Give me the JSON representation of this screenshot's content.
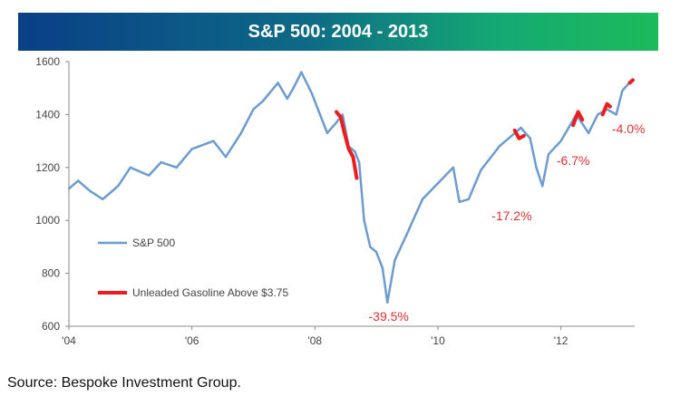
{
  "header": {
    "title": "S&P 500: 2004 - 2013"
  },
  "source": "Source:  Bespoke Investment Group.",
  "colors": {
    "sp500": "#6b9bd1",
    "gasoline": "#ee1c1c",
    "annotation": "#e03030"
  },
  "chart_data": {
    "type": "line",
    "title": "S&P 500: 2004 - 2013",
    "xlabel": "",
    "ylabel": "",
    "xlim": [
      2004.0,
      2013.2
    ],
    "ylim": [
      600,
      1600
    ],
    "grid": false,
    "legend_position": "left",
    "y_ticks": [
      "600",
      "800",
      "1000",
      "1200",
      "1400",
      "1600"
    ],
    "x_ticks": [
      {
        "value": 2004,
        "label": "'04"
      },
      {
        "value": 2006,
        "label": "'06"
      },
      {
        "value": 2008,
        "label": "'08"
      },
      {
        "value": 2010,
        "label": "'10"
      },
      {
        "value": 2012,
        "label": "'12"
      }
    ],
    "series": [
      {
        "name": "S&P 500",
        "x": [
          2004.0,
          2004.15,
          2004.35,
          2004.55,
          2004.65,
          2004.8,
          2005.0,
          2005.3,
          2005.5,
          2005.75,
          2006.0,
          2006.35,
          2006.55,
          2006.8,
          2007.0,
          2007.15,
          2007.4,
          2007.55,
          2007.65,
          2007.78,
          2007.95,
          2008.05,
          2008.2,
          2008.35,
          2008.45,
          2008.55,
          2008.65,
          2008.72,
          2008.8,
          2008.9,
          2009.0,
          2009.1,
          2009.18,
          2009.3,
          2009.5,
          2009.75,
          2010.0,
          2010.25,
          2010.35,
          2010.5,
          2010.7,
          2011.0,
          2011.2,
          2011.35,
          2011.5,
          2011.6,
          2011.7,
          2011.8,
          2012.0,
          2012.25,
          2012.45,
          2012.6,
          2012.75,
          2012.9,
          2013.0,
          2013.15
        ],
        "y": [
          1120,
          1150,
          1110,
          1080,
          1100,
          1130,
          1200,
          1170,
          1220,
          1200,
          1270,
          1300,
          1240,
          1330,
          1420,
          1450,
          1520,
          1460,
          1500,
          1560,
          1480,
          1420,
          1330,
          1370,
          1400,
          1280,
          1260,
          1220,
          1000,
          900,
          880,
          820,
          690,
          850,
          950,
          1080,
          1140,
          1200,
          1070,
          1080,
          1190,
          1280,
          1320,
          1350,
          1310,
          1200,
          1130,
          1250,
          1300,
          1400,
          1330,
          1400,
          1420,
          1400,
          1490,
          1530
        ]
      },
      {
        "name": "Unleaded Gasoline Above $3.75",
        "segments": [
          {
            "x": [
              2008.35,
              2008.42,
              2008.48,
              2008.55,
              2008.62,
              2008.68
            ],
            "y": [
              1410,
              1390,
              1330,
              1270,
              1240,
              1160
            ]
          },
          {
            "x": [
              2011.25,
              2011.32,
              2011.4
            ],
            "y": [
              1340,
              1310,
              1320
            ]
          },
          {
            "x": [
              2012.2,
              2012.28,
              2012.35
            ],
            "y": [
              1360,
              1410,
              1380
            ]
          },
          {
            "x": [
              2012.68,
              2012.75,
              2012.8
            ],
            "y": [
              1400,
              1440,
              1430
            ]
          },
          {
            "x": [
              2013.12,
              2013.17
            ],
            "y": [
              1520,
              1530
            ]
          }
        ]
      }
    ],
    "annotations": [
      {
        "text": "-39.5%",
        "x": 2009.2,
        "y": 620
      },
      {
        "text": "-17.2%",
        "x": 2011.2,
        "y": 1000
      },
      {
        "text": "-6.7%",
        "x": 2012.2,
        "y": 1210
      },
      {
        "text": "-4.0%",
        "x": 2013.1,
        "y": 1330
      }
    ]
  }
}
